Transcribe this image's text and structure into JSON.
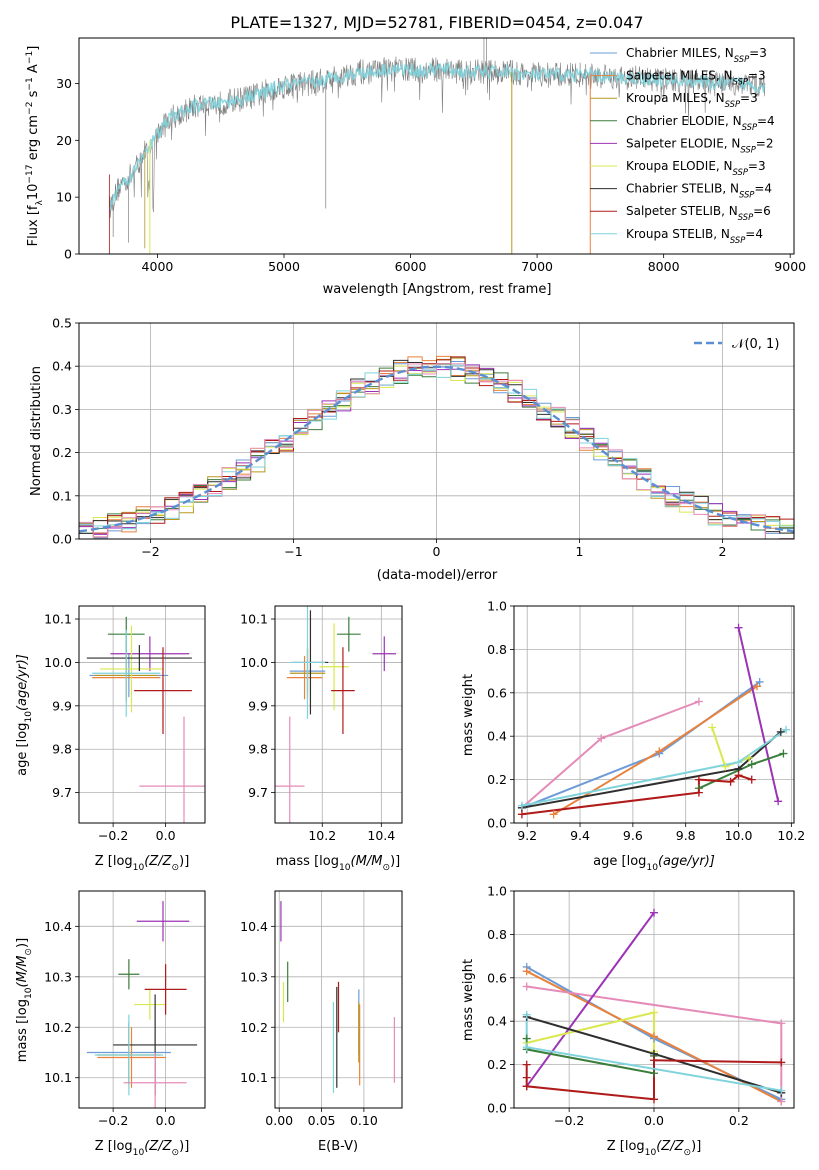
{
  "figure": {
    "title": "PLATE=1327, MJD=52781, FIBERID=0454, z=0.047"
  },
  "colors": {
    "cm": "#6d9bd8",
    "sm": "#e8823c",
    "km": "#b8981f",
    "ce": "#3b7d3b",
    "se": "#9b33b5",
    "ke": "#d9e84f",
    "cs": "#2e2e2e",
    "ss": "#b01a1a",
    "ks": "#7fd3dc",
    "data": "#7f7f7f",
    "norm": "#5b8fd4"
  },
  "chart_data": [
    {
      "id": "spectrum",
      "type": "line",
      "xlabel": "wavelength [Angstrom, rest frame]",
      "ylabel_pre": "Flux [f",
      "ylabel_lambda": "λ",
      "ylabel_mid": "10",
      "ylabel_exp1": "−17",
      "ylabel_post": " erg cm",
      "ylabel_exp2": "−2",
      "ylabel_post2": " s",
      "ylabel_exp3": "−1",
      "ylabel_post3": " A",
      "ylabel_exp4": "−1",
      "ylabel_end": "]",
      "xlim": [
        3380,
        9030
      ],
      "ylim": [
        0,
        38
      ],
      "xticks": [
        "4000",
        "5000",
        "6000",
        "7000",
        "8000",
        "9000"
      ],
      "yticks": [
        "0",
        "10",
        "20",
        "30"
      ],
      "continuum": [
        [
          3620,
          8
        ],
        [
          3700,
          12
        ],
        [
          3800,
          14
        ],
        [
          3900,
          18
        ],
        [
          4000,
          21
        ],
        [
          4100,
          24
        ],
        [
          4200,
          25
        ],
        [
          4300,
          26
        ],
        [
          4400,
          26.5
        ],
        [
          4500,
          26.5
        ],
        [
          4600,
          27
        ],
        [
          4700,
          27.5
        ],
        [
          4800,
          28
        ],
        [
          4900,
          29
        ],
        [
          5000,
          29.5
        ],
        [
          5100,
          30
        ],
        [
          5200,
          30
        ],
        [
          5300,
          30.5
        ],
        [
          5400,
          31
        ],
        [
          5500,
          31.5
        ],
        [
          5600,
          32
        ],
        [
          5700,
          32
        ],
        [
          5800,
          32.5
        ],
        [
          5900,
          32.5
        ],
        [
          6000,
          32.5
        ],
        [
          6100,
          32
        ],
        [
          6200,
          32.5
        ],
        [
          6300,
          32.5
        ],
        [
          6400,
          32
        ],
        [
          6500,
          32
        ],
        [
          6600,
          32
        ],
        [
          6700,
          32
        ],
        [
          6800,
          32
        ],
        [
          6900,
          31.5
        ],
        [
          7000,
          31.5
        ],
        [
          7200,
          31.5
        ],
        [
          7400,
          31.5
        ],
        [
          7600,
          31
        ],
        [
          7800,
          31
        ],
        [
          8000,
          30.5
        ],
        [
          8200,
          30.5
        ],
        [
          8400,
          30
        ],
        [
          8600,
          30
        ],
        [
          8800,
          29.5
        ]
      ],
      "legend": [
        {
          "label": "Chabrier MILES, N",
          "sub": "SSP",
          "val": "=3",
          "key": "cm"
        },
        {
          "label": "Salpeter MILES, N",
          "sub": "SSP",
          "val": "=3",
          "key": "sm"
        },
        {
          "label": "Kroupa MILES, N",
          "sub": "SSP",
          "val": "=3",
          "key": "km"
        },
        {
          "label": "Chabrier ELODIE, N",
          "sub": "SSP",
          "val": "=4",
          "key": "ce"
        },
        {
          "label": "Salpeter ELODIE, N",
          "sub": "SSP",
          "val": "=2",
          "key": "se"
        },
        {
          "label": "Kroupa ELODIE, N",
          "sub": "SSP",
          "val": "=3",
          "key": "ke"
        },
        {
          "label": "Chabrier STELIB, N",
          "sub": "SSP",
          "val": "=4",
          "key": "cs"
        },
        {
          "label": "Salpeter STELIB, N",
          "sub": "SSP",
          "val": "=6",
          "key": "ss"
        },
        {
          "label": "Kroupa STELIB, N",
          "sub": "SSP",
          "val": "=4",
          "key": "ks"
        }
      ]
    },
    {
      "id": "residuals",
      "type": "line",
      "xlabel": "(data-model)/error",
      "ylabel": "Normed distribution",
      "xlim": [
        -2.5,
        2.5
      ],
      "ylim": [
        0,
        0.5
      ],
      "xticks": [
        "−2",
        "−1",
        "0",
        "1",
        "2"
      ],
      "yticks": [
        "0.0",
        "0.1",
        "0.2",
        "0.3",
        "0.4",
        "0.5"
      ],
      "grid": true,
      "legend_label": "𝒩(0, 1)",
      "bin_width": 0.1
    },
    {
      "id": "age_vs_Z",
      "type": "scatter",
      "xlabel": "Z [log",
      "xlabel_sub": "10",
      "xlabel_post": "(Z/Z",
      "xlabel_sun": "⊙",
      "xlabel_end": ")]",
      "ylabel": "age  [log",
      "ylabel_sub": "10",
      "ylabel_post": "(age/yr)]",
      "xlim": [
        -0.33,
        0.15
      ],
      "ylim": [
        9.63,
        10.13
      ],
      "xticks": [
        "−0.2",
        "0.0"
      ],
      "yticks": [
        "9.7",
        "9.8",
        "9.9",
        "10.0",
        "10.1"
      ],
      "grid": true,
      "points": [
        {
          "key": "cm",
          "x": -0.14,
          "y": 9.97,
          "xerr": 0.15,
          "yerr": 0.05
        },
        {
          "key": "sm",
          "x": -0.15,
          "y": 9.965,
          "xerr": 0.13,
          "yerr": 0.05
        },
        {
          "key": "km",
          "x": -0.15,
          "y": 9.97,
          "xerr": 0.12,
          "yerr": 0.06
        },
        {
          "key": "ce",
          "x": -0.15,
          "y": 10.065,
          "xerr": 0.07,
          "yerr": 0.04
        },
        {
          "key": "se",
          "x": -0.06,
          "y": 10.02,
          "xerr": 0.15,
          "yerr": 0.04
        },
        {
          "key": "ke",
          "x": -0.13,
          "y": 9.985,
          "xerr": 0.12,
          "yerr": 0.1
        },
        {
          "key": "cs",
          "x": -0.1,
          "y": 10.01,
          "xerr": 0.2,
          "yerr": 0.03
        },
        {
          "key": "ss",
          "x": -0.01,
          "y": 9.935,
          "xerr": 0.11,
          "yerr": 0.1
        },
        {
          "key": "ks",
          "x": -0.15,
          "y": 9.975,
          "xerr": 0.13,
          "yerr": 0.1
        },
        {
          "key": "cm2",
          "x": 0.07,
          "y": 9.715,
          "xerr": 0.17,
          "yerr": 0.16
        }
      ]
    },
    {
      "id": "age_vs_mass",
      "type": "scatter",
      "xlabel": "mass [log",
      "xlabel_sub": "10",
      "xlabel_post": "(M/M",
      "xlabel_sun": "⊙",
      "xlabel_end": ")]",
      "xlim": [
        10.04,
        10.47
      ],
      "ylim": [
        9.63,
        10.13
      ],
      "xticks": [
        "10.2",
        "10.4"
      ],
      "yticks": [
        "9.7",
        "9.8",
        "9.9",
        "10.0",
        "10.1"
      ],
      "grid": true,
      "points": [
        {
          "key": "cm",
          "x": 10.15,
          "y": 9.98,
          "xerr": 0.06,
          "yerr": 0.05
        },
        {
          "key": "sm",
          "x": 10.14,
          "y": 9.965,
          "xerr": 0.06,
          "yerr": 0.05
        },
        {
          "key": "km",
          "x": 10.15,
          "y": 9.975,
          "xerr": 0.06,
          "yerr": 0.06
        },
        {
          "key": "ce",
          "x": 10.29,
          "y": 10.065,
          "xerr": 0.04,
          "yerr": 0.04
        },
        {
          "key": "se",
          "x": 10.41,
          "y": 10.02,
          "xerr": 0.04,
          "yerr": 0.04
        },
        {
          "key": "ke",
          "x": 10.24,
          "y": 9.99,
          "xerr": 0.05,
          "yerr": 0.1
        },
        {
          "key": "cs",
          "x": 10.16,
          "y": 10.0,
          "xerr": 0.06,
          "yerr": 0.12
        },
        {
          "key": "ss",
          "x": 10.27,
          "y": 9.935,
          "xerr": 0.04,
          "yerr": 0.1
        },
        {
          "key": "ks",
          "x": 10.15,
          "y": 10.0,
          "xerr": 0.06,
          "yerr": 0.13
        },
        {
          "key": "cm2",
          "x": 10.09,
          "y": 9.715,
          "xerr": 0.05,
          "yerr": 0.16
        }
      ]
    },
    {
      "id": "weight_vs_age",
      "type": "line",
      "xlabel": "age  [log",
      "xlabel_sub": "10",
      "xlabel_post": "(age/yr)]",
      "ylabel": "mass weight",
      "xlim": [
        9.15,
        10.21
      ],
      "ylim": [
        0,
        1.0
      ],
      "xticks": [
        "9.2",
        "9.4",
        "9.6",
        "9.8",
        "10.0",
        "10.2"
      ],
      "yticks": [
        "0.0",
        "0.2",
        "0.4",
        "0.6",
        "0.8",
        "1.0"
      ],
      "grid": true,
      "series": [
        {
          "key": "cm",
          "x": [
            9.18,
            9.7,
            10.08
          ],
          "y": [
            0.07,
            0.32,
            0.65
          ]
        },
        {
          "key": "sm",
          "x": [
            9.3,
            9.7,
            10.07
          ],
          "y": [
            0.04,
            0.33,
            0.63
          ]
        },
        {
          "key": "cm2",
          "x": [
            9.18,
            9.48,
            9.85
          ],
          "y": [
            0.07,
            0.39,
            0.56
          ]
        },
        {
          "key": "se",
          "x": [
            10.0,
            10.15
          ],
          "y": [
            0.9,
            0.1
          ]
        },
        {
          "key": "ke",
          "x": [
            9.9,
            9.95,
            10.04
          ],
          "y": [
            0.44,
            0.26,
            0.3
          ]
        },
        {
          "key": "ce",
          "x": [
            9.85,
            10.05,
            10.17
          ],
          "y": [
            0.16,
            0.27,
            0.32
          ]
        },
        {
          "key": "cs",
          "x": [
            9.18,
            10.0,
            10.16
          ],
          "y": [
            0.07,
            0.25,
            0.42
          ]
        },
        {
          "key": "ss",
          "x": [
            9.18,
            9.85,
            9.85,
            9.97,
            10.0,
            10.05
          ],
          "y": [
            0.04,
            0.14,
            0.2,
            0.19,
            0.22,
            0.2
          ]
        },
        {
          "key": "ks",
          "x": [
            9.18,
            10.0,
            10.18
          ],
          "y": [
            0.08,
            0.28,
            0.43
          ]
        }
      ]
    },
    {
      "id": "mass_vs_Z",
      "type": "scatter",
      "xlabel": "Z [log",
      "xlabel_sub": "10",
      "xlabel_post": "(Z/Z",
      "xlabel_sun": "⊙",
      "xlabel_end": ")]",
      "ylabel": "mass [log",
      "ylabel_sub": "10",
      "ylabel_post": "(M/M",
      "ylabel_sun": "⊙",
      "ylabel_end": ")]",
      "xlim": [
        -0.33,
        0.15
      ],
      "ylim": [
        10.04,
        10.47
      ],
      "xticks": [
        "−0.2",
        "0.0"
      ],
      "yticks": [
        "10.1",
        "10.2",
        "10.3",
        "10.4"
      ],
      "grid": true,
      "points": [
        {
          "key": "cm",
          "x": -0.14,
          "y": 10.15,
          "xerr": 0.16,
          "yerr": 0.06
        },
        {
          "key": "sm",
          "x": -0.13,
          "y": 10.14,
          "xerr": 0.13,
          "yerr": 0.06
        },
        {
          "key": "km",
          "x": -0.14,
          "y": 10.145,
          "xerr": 0.12,
          "yerr": 0.06
        },
        {
          "key": "ce",
          "x": -0.14,
          "y": 10.305,
          "xerr": 0.04,
          "yerr": 0.03
        },
        {
          "key": "se",
          "x": -0.01,
          "y": 10.41,
          "xerr": 0.1,
          "yerr": 0.04
        },
        {
          "key": "ke",
          "x": -0.06,
          "y": 10.245,
          "xerr": 0.06,
          "yerr": 0.03
        },
        {
          "key": "cs",
          "x": -0.04,
          "y": 10.165,
          "xerr": 0.16,
          "yerr": 0.1
        },
        {
          "key": "ss",
          "x": 0.0,
          "y": 10.275,
          "xerr": 0.08,
          "yerr": 0.05
        },
        {
          "key": "ks",
          "x": -0.14,
          "y": 10.145,
          "xerr": 0.13,
          "yerr": 0.08
        },
        {
          "key": "cm2",
          "x": -0.04,
          "y": 10.09,
          "xerr": 0.12,
          "yerr": 0.06
        }
      ]
    },
    {
      "id": "mass_vs_ebv",
      "type": "scatter",
      "xlabel": "E(B-V)",
      "xlim": [
        -0.005,
        0.145
      ],
      "ylim": [
        10.04,
        10.47
      ],
      "xticks": [
        "0.00",
        "0.05",
        "0.10"
      ],
      "yticks": [
        "10.1",
        "10.2",
        "10.3",
        "10.4"
      ],
      "grid": true,
      "points": [
        {
          "key": "cm",
          "x": 0.094,
          "y": 10.21,
          "xerr": 0,
          "yerr": 0.065
        },
        {
          "key": "sm",
          "x": 0.095,
          "y": 10.165,
          "xerr": 0,
          "yerr": 0.08
        },
        {
          "key": "km",
          "x": 0.094,
          "y": 10.19,
          "xerr": 0,
          "yerr": 0.06
        },
        {
          "key": "ce",
          "x": 0.01,
          "y": 10.29,
          "xerr": 0,
          "yerr": 0.04
        },
        {
          "key": "se",
          "x": 0.002,
          "y": 10.41,
          "xerr": 0,
          "yerr": 0.04
        },
        {
          "key": "ke",
          "x": 0.005,
          "y": 10.25,
          "xerr": 0,
          "yerr": 0.04
        },
        {
          "key": "cs",
          "x": 0.068,
          "y": 10.18,
          "xerr": 0,
          "yerr": 0.1
        },
        {
          "key": "ss",
          "x": 0.07,
          "y": 10.24,
          "xerr": 0,
          "yerr": 0.05
        },
        {
          "key": "ks",
          "x": 0.064,
          "y": 10.16,
          "xerr": 0,
          "yerr": 0.09
        },
        {
          "key": "cm2",
          "x": 0.136,
          "y": 10.155,
          "xerr": 0,
          "yerr": 0.065
        }
      ]
    },
    {
      "id": "weight_vs_Z",
      "type": "line",
      "xlabel": "Z [log",
      "xlabel_sub": "10",
      "xlabel_post": "(Z/Z",
      "xlabel_sun": "⊙",
      "xlabel_end": ")]",
      "ylabel": "mass weight",
      "xlim": [
        -0.33,
        0.33
      ],
      "ylim": [
        0,
        1.0
      ],
      "xticks": [
        "−0.2",
        "0.0",
        "0.2"
      ],
      "yticks": [
        "0.0",
        "0.2",
        "0.4",
        "0.6",
        "0.8",
        "1.0"
      ],
      "grid": true,
      "series": [
        {
          "key": "cm",
          "x": [
            -0.3,
            0.0,
            0.3
          ],
          "y": [
            0.65,
            0.32,
            0.04
          ]
        },
        {
          "key": "sm",
          "x": [
            -0.3,
            0.0,
            0.3
          ],
          "y": [
            0.63,
            0.33,
            0.03
          ]
        },
        {
          "key": "cm2",
          "x": [
            -0.3,
            0.3,
            0.3
          ],
          "y": [
            0.56,
            0.39,
            0.03
          ]
        },
        {
          "key": "se",
          "x": [
            -0.3,
            0.0
          ],
          "y": [
            0.1,
            0.9
          ]
        },
        {
          "key": "ke",
          "x": [
            -0.3,
            0.0,
            0.0
          ],
          "y": [
            0.3,
            0.44,
            0.26
          ]
        },
        {
          "key": "ce",
          "x": [
            -0.3,
            -0.3,
            0.0,
            0.0
          ],
          "y": [
            0.32,
            0.27,
            0.16,
            0.24
          ]
        },
        {
          "key": "cs",
          "x": [
            -0.3,
            0.0,
            0.3
          ],
          "y": [
            0.42,
            0.25,
            0.07
          ]
        },
        {
          "key": "ss",
          "x": [
            -0.3,
            -0.3,
            -0.3,
            0.0,
            0.0,
            0.3
          ],
          "y": [
            0.2,
            0.14,
            0.1,
            0.04,
            0.22,
            0.21
          ]
        },
        {
          "key": "ks",
          "x": [
            -0.3,
            -0.3,
            0.3
          ],
          "y": [
            0.43,
            0.28,
            0.08
          ]
        }
      ]
    }
  ]
}
